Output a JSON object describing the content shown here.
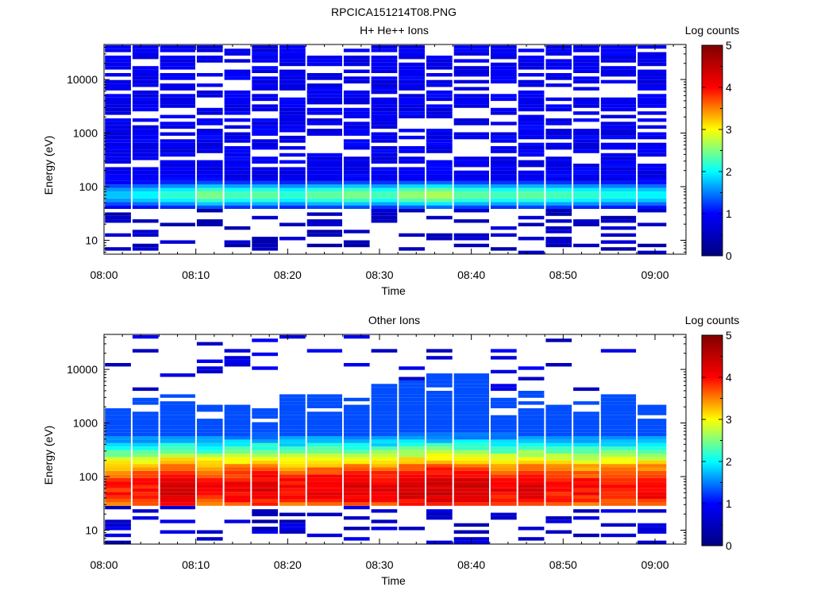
{
  "figure_title": "RPCICA151214T08.PNG",
  "colors": {
    "colormap": [
      "#000080",
      "#0000ff",
      "#00ffff",
      "#ffff00",
      "#ff0000",
      "#800000"
    ]
  },
  "chart_data": [
    {
      "type": "heatmap",
      "title": "H+ He++ Ions",
      "xlabel": "Time",
      "ylabel": "Energy (eV)",
      "x_ticks": [
        "08:00",
        "08:10",
        "08:20",
        "08:30",
        "08:40",
        "08:50",
        "09:00"
      ],
      "y_ticks": [
        "10",
        "100",
        "1000",
        "10000"
      ],
      "y_scale": "log",
      "ylim": [
        5.5,
        45000
      ],
      "colorbar": {
        "label": "Log counts",
        "ticks": [
          "0",
          "1",
          "2",
          "3",
          "4",
          "5"
        ],
        "range": [
          0,
          5
        ]
      },
      "time_bins": [
        "08:00",
        "08:03",
        "08:06",
        "08:10",
        "08:13",
        "08:16",
        "08:19",
        "08:22",
        "08:26",
        "08:29",
        "08:32",
        "08:35",
        "08:38",
        "08:42",
        "08:45",
        "08:48",
        "08:51",
        "08:54",
        "08:58"
      ],
      "profile": {
        "low_edge_eV": 38,
        "peak_eV": 70,
        "peak_log_counts": [
          1.8,
          2.0,
          2.2,
          2.5,
          2.3,
          2.4,
          2.2,
          2.4,
          2.5,
          2.3,
          2.6,
          2.7,
          2.4,
          2.3,
          2.4,
          2.3,
          2.2,
          2.1,
          2.0
        ],
        "background_log_counts": 0.7,
        "sparse_above_eV": 200
      }
    },
    {
      "type": "heatmap",
      "title": "Other Ions",
      "xlabel": "Time",
      "ylabel": "Energy (eV)",
      "x_ticks": [
        "08:00",
        "08:10",
        "08:20",
        "08:30",
        "08:40",
        "08:50",
        "09:00"
      ],
      "y_ticks": [
        "10",
        "100",
        "1000",
        "10000"
      ],
      "y_scale": "log",
      "ylim": [
        5.5,
        45000
      ],
      "colorbar": {
        "label": "Log counts",
        "ticks": [
          "0",
          "1",
          "2",
          "3",
          "4",
          "5"
        ],
        "range": [
          0,
          5
        ]
      },
      "time_bins": [
        "08:00",
        "08:03",
        "08:06",
        "08:10",
        "08:13",
        "08:16",
        "08:19",
        "08:22",
        "08:26",
        "08:29",
        "08:32",
        "08:35",
        "08:38",
        "08:42",
        "08:45",
        "08:48",
        "08:51",
        "08:54",
        "08:58"
      ],
      "profile": {
        "low_edge_eV": 28,
        "peak_eV": 60,
        "peak_log_counts": [
          3.9,
          4.0,
          4.3,
          4.0,
          4.1,
          4.2,
          4.0,
          4.1,
          4.2,
          4.1,
          4.3,
          4.4,
          4.3,
          4.1,
          4.2,
          4.0,
          4.0,
          4.0,
          4.1
        ],
        "top_edge_eV": [
          2000,
          2800,
          3200,
          2200,
          2100,
          2000,
          3500,
          3200,
          3000,
          5000,
          6000,
          8000,
          9000,
          3000,
          4000,
          2500,
          3000,
          3300,
          2200
        ],
        "background_log_counts": 1.3
      }
    }
  ]
}
